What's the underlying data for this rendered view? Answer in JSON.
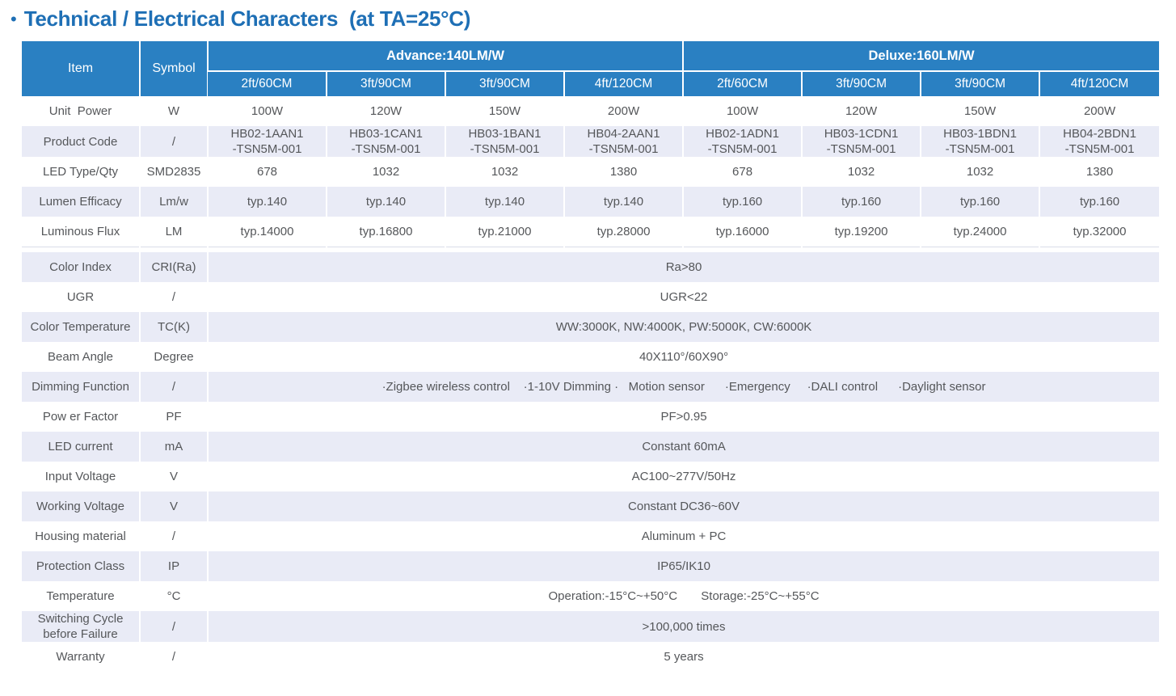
{
  "title": {
    "bullet": "•",
    "text": "Technical / Electrical Characters  (at TA=25°C)"
  },
  "colors": {
    "title_blue": "#1e6fb5",
    "header_blue": "#2a80c2",
    "band_lavender": "#e9ebf6",
    "body_text_gray": "#55575a",
    "divider_gray": "#d9dce8"
  },
  "table": {
    "corner": {
      "item": "Item",
      "symbol": "Symbol"
    },
    "groups": [
      {
        "label": "Advance:140LM/W",
        "subcols": [
          "2ft/60CM",
          "3ft/90CM",
          "3ft/90CM",
          "4ft/120CM"
        ]
      },
      {
        "label": "Deluxe:160LM/W",
        "subcols": [
          "2ft/60CM",
          "3ft/90CM",
          "3ft/90CM",
          "4ft/120CM"
        ]
      }
    ],
    "rows": [
      {
        "item": "Unit  Power",
        "symbol": "W",
        "values": [
          "100W",
          "120W",
          "150W",
          "200W",
          "100W",
          "120W",
          "150W",
          "200W"
        ]
      },
      {
        "item": "Product Code",
        "symbol": "/",
        "values": [
          "HB02-1AAN1\n-TSN5M-001",
          "HB03-1CAN1\n-TSN5M-001",
          "HB03-1BAN1\n-TSN5M-001",
          "HB04-2AAN1\n-TSN5M-001",
          "HB02-1ADN1\n-TSN5M-001",
          "HB03-1CDN1\n-TSN5M-001",
          "HB03-1BDN1\n-TSN5M-001",
          "HB04-2BDN1\n-TSN5M-001"
        ]
      },
      {
        "item": "LED Type/Qty",
        "symbol": "SMD2835",
        "values": [
          "678",
          "1032",
          "1032",
          "1380",
          "678",
          "1032",
          "1032",
          "1380"
        ]
      },
      {
        "item": "Lumen Efficacy",
        "symbol": "Lm/w",
        "values": [
          "typ.140",
          "typ.140",
          "typ.140",
          "typ.140",
          "typ.160",
          "typ.160",
          "typ.160",
          "typ.160"
        ]
      },
      {
        "item": "Luminous Flux",
        "symbol": "LM",
        "values": [
          "typ.14000",
          "typ.16800",
          "typ.21000",
          "typ.28000",
          "typ.16000",
          "typ.19200",
          "typ.24000",
          "typ.32000"
        ]
      },
      {
        "gap": true
      },
      {
        "item": "Color Index",
        "symbol": "CRI(Ra)",
        "value": "Ra>80"
      },
      {
        "item": "UGR",
        "symbol": "/",
        "value": "UGR<22"
      },
      {
        "item": "Color Temperature",
        "symbol": "TC(K)",
        "value": "WW:3000K, NW:4000K, PW:5000K, CW:6000K"
      },
      {
        "item": "Beam Angle",
        "symbol": "Degree",
        "value": "40X110°/60X90°"
      },
      {
        "item": "Dimming Function",
        "symbol": "/",
        "value": "·Zigbee wireless control    ·1-10V Dimming ·   Motion sensor      ·Emergency     ·DALI control      ·Daylight sensor"
      },
      {
        "item": "Pow er Factor",
        "symbol": "PF",
        "value": "PF>0.95"
      },
      {
        "item": "LED current",
        "symbol": "mA",
        "value": "Constant 60mA"
      },
      {
        "item": "Input Voltage",
        "symbol": "V",
        "value": "AC100~277V/50Hz"
      },
      {
        "item": "Working Voltage",
        "symbol": "V",
        "value": "Constant DC36~60V"
      },
      {
        "item": "Housing material",
        "symbol": "/",
        "value": "Aluminum + PC"
      },
      {
        "item": "Protection Class",
        "symbol": "IP",
        "value": "IP65/IK10"
      },
      {
        "item": "Temperature",
        "symbol": "°C",
        "value": "Operation:-15°C~+50°C       Storage:-25°C~+55°C"
      },
      {
        "item": "Switching Cycle\nbefore Failure",
        "symbol": "/",
        "value": ">100,000 times"
      },
      {
        "item": "Warranty",
        "symbol": "/",
        "value": "5 years"
      }
    ]
  }
}
